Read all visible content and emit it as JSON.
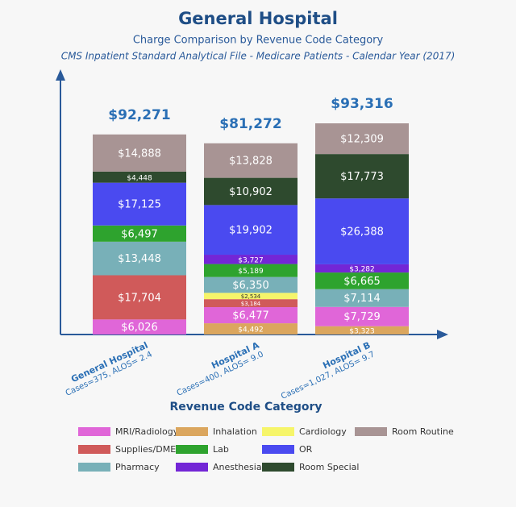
{
  "chart_data": {
    "type": "stacked_bar",
    "title": "General Hospital",
    "subtitle": "Charge Comparison by Revenue Code Category",
    "subtitle2": "CMS Inpatient Standard Analytical File - Medicare Patients - Calendar Year (2017)",
    "categories": [
      "General Hospital",
      "Hospital A",
      "Hospital B"
    ],
    "category_notes": [
      "Cases=375, ALOS= 2.4",
      "Cases=400, ALOS= 9.0",
      "Cases=1,027, ALOS= 9.7"
    ],
    "totals": {
      "values": [
        92271,
        81272,
        93316
      ],
      "value_labels": [
        "$92,271",
        "$81,272",
        "$93,316"
      ]
    },
    "legend_title": "Revenue Code Category",
    "series": [
      {
        "name": "Inhalation",
        "color": "#dba65e",
        "values": [
          null,
          4492,
          3323
        ],
        "value_labels": [
          null,
          "$4,492",
          "$3,323"
        ]
      },
      {
        "name": "MRI/Radiology",
        "color": "#e066d8",
        "values": [
          6026,
          6477,
          7729
        ],
        "value_labels": [
          "$6,026",
          "$6,477",
          "$7,729"
        ]
      },
      {
        "name": "Supplies/DME",
        "color": "#d05a5a",
        "values": [
          17704,
          3184,
          null
        ],
        "value_labels": [
          "$17,704",
          "$3,184",
          null
        ]
      },
      {
        "name": "Cardiology",
        "color": "#f6f56a",
        "values": [
          null,
          2534,
          null
        ],
        "value_labels": [
          null,
          "$2,534",
          null
        ]
      },
      {
        "name": "Pharmacy",
        "color": "#78b0b8",
        "values": [
          13448,
          6350,
          7114
        ],
        "value_labels": [
          "$13,448",
          "$6,350",
          "$7,114"
        ]
      },
      {
        "name": "Lab",
        "color": "#2ea32e",
        "values": [
          6497,
          5189,
          6665
        ],
        "value_labels": [
          "$6,497",
          "$5,189",
          "$6,665"
        ]
      },
      {
        "name": "Anesthesia",
        "color": "#7326d6",
        "values": [
          null,
          3727,
          3282
        ],
        "value_labels": [
          null,
          "$3,727",
          "$3,282"
        ]
      },
      {
        "name": "OR",
        "color": "#4a4af0",
        "values": [
          17125,
          19902,
          26388
        ],
        "value_labels": [
          "$17,125",
          "$19,902",
          "$26,388"
        ]
      },
      {
        "name": "Room Special",
        "color": "#2e4a2e",
        "values": [
          4448,
          10902,
          17773
        ],
        "value_labels": [
          "$4,448",
          "$10,902",
          "$17,773"
        ]
      },
      {
        "name": "Room Routine",
        "color": "#a89494",
        "values": [
          14888,
          13828,
          12309
        ],
        "value_labels": [
          "$14,888",
          "$13,828",
          "$12,309"
        ]
      }
    ]
  }
}
